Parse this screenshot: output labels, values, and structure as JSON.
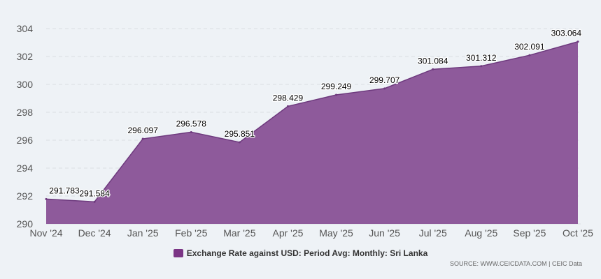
{
  "chart_data": {
    "type": "area",
    "categories": [
      "Nov '24",
      "Dec '24",
      "Jan '25",
      "Feb '25",
      "Mar '25",
      "Apr '25",
      "May '25",
      "Jun '25",
      "Jul '25",
      "Aug '25",
      "Sep '25",
      "Oct '25"
    ],
    "series": [
      {
        "name": "Exchange Rate against USD: Period Avg: Monthly: Sri Lanka",
        "values": [
          291.783,
          291.584,
          296.097,
          296.578,
          295.851,
          298.429,
          299.249,
          299.707,
          301.084,
          301.312,
          302.091,
          303.064
        ],
        "labels": [
          "291.783",
          "291.584",
          "296.097",
          "296.578",
          "295.851",
          "298.429",
          "299.249",
          "299.707",
          "301.084",
          "301.312",
          "302.091",
          "303.064"
        ]
      }
    ],
    "yticks": [
      "290",
      "292",
      "294",
      "296",
      "298",
      "300",
      "302",
      "304"
    ],
    "ylim": [
      290,
      304
    ],
    "grid": true,
    "legend_position": "bottom"
  },
  "colors": {
    "area_fill": "#8e5a9b",
    "area_stroke": "#6e3a7e",
    "legend_swatch": "#7b3585",
    "gridline": "#d9dde3",
    "background": "#eef2f6"
  },
  "source": "SOURCE: WWW.CEICDATA.COM | CEIC Data"
}
